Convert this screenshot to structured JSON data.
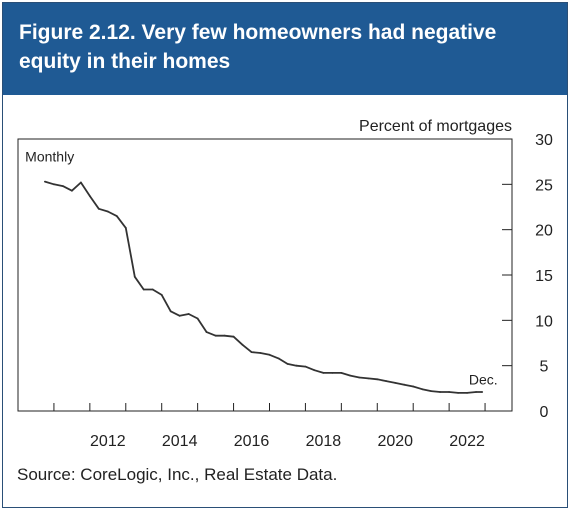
{
  "title": "Figure 2.12. Very few homeowners had negative equity in their homes",
  "source": "Source: CoreLogic, Inc., Real Estate Data.",
  "colors": {
    "header": "#1f5a94",
    "line": "#333333",
    "axis": "#222222"
  },
  "chart_data": {
    "type": "line",
    "title": "",
    "xlabel": "",
    "ylabel": "Percent of mortgages",
    "ylim": [
      0,
      30
    ],
    "yticks": [
      0,
      5,
      10,
      15,
      20,
      25,
      30
    ],
    "xlim": [
      2010,
      2023.75
    ],
    "xtick_labels": [
      "2012",
      "2014",
      "2016",
      "2018",
      "2020",
      "2022"
    ],
    "grid": false,
    "annotations": [
      {
        "text": "Monthly",
        "x": 2010.2,
        "y": 27.5
      },
      {
        "text": "Dec.",
        "x": 2022.95,
        "y": 2.9
      }
    ],
    "series": [
      {
        "x": [
          2010.75,
          2011.0,
          2011.25,
          2011.5,
          2011.75,
          2012.0,
          2012.25,
          2012.5,
          2012.75,
          2013.0,
          2013.25,
          2013.5,
          2013.75,
          2014.0,
          2014.25,
          2014.5,
          2014.75,
          2015.0,
          2015.25,
          2015.5,
          2015.75,
          2016.0,
          2016.25,
          2016.5,
          2016.75,
          2017.0,
          2017.25,
          2017.5,
          2017.75,
          2018.0,
          2018.25,
          2018.5,
          2018.75,
          2019.0,
          2019.25,
          2019.5,
          2019.75,
          2020.0,
          2020.25,
          2020.5,
          2020.75,
          2021.0,
          2021.25,
          2021.5,
          2021.75,
          2022.0,
          2022.25,
          2022.5,
          2022.75,
          2022.92
        ],
        "values": [
          25.3,
          25.0,
          24.8,
          24.3,
          25.2,
          23.7,
          22.3,
          22.0,
          21.5,
          20.2,
          14.8,
          13.4,
          13.4,
          12.8,
          11.0,
          10.5,
          10.7,
          10.2,
          8.7,
          8.3,
          8.3,
          8.2,
          7.3,
          6.5,
          6.4,
          6.2,
          5.8,
          5.2,
          5.0,
          4.9,
          4.5,
          4.2,
          4.2,
          4.2,
          3.9,
          3.7,
          3.6,
          3.5,
          3.3,
          3.1,
          2.9,
          2.7,
          2.4,
          2.2,
          2.1,
          2.1,
          2.0,
          2.0,
          2.1,
          2.1
        ]
      }
    ]
  }
}
